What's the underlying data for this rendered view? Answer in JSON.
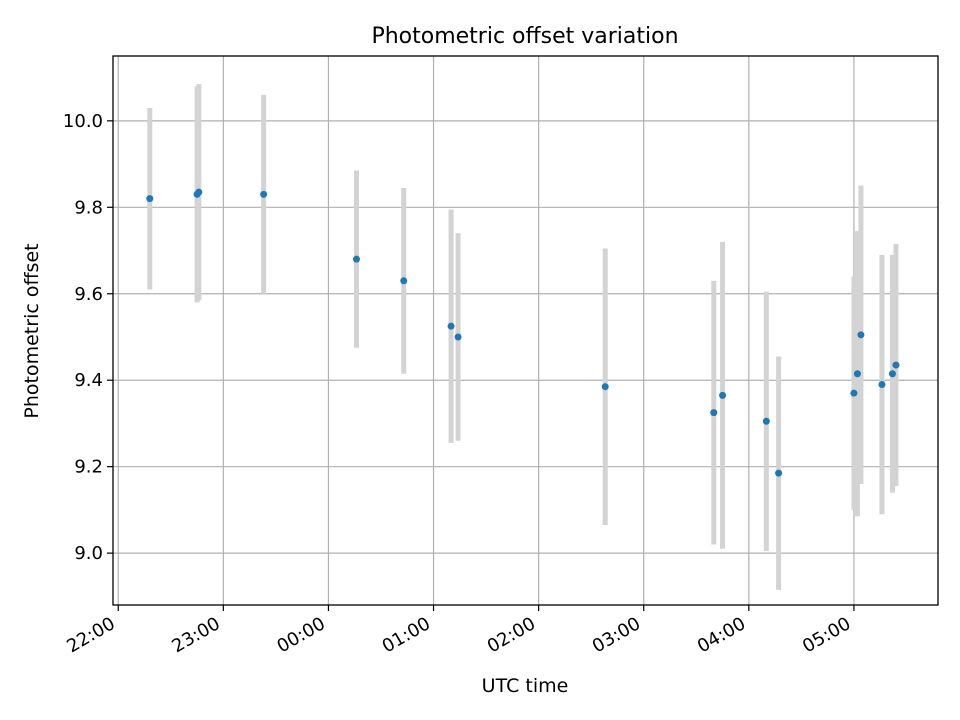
{
  "chart_data": {
    "type": "scatter",
    "title": "Photometric offset variation",
    "xlabel": "UTC time",
    "ylabel": "Photometric offset",
    "x_ticks": [
      "22:00",
      "23:00",
      "00:00",
      "01:00",
      "02:00",
      "03:00",
      "04:00",
      "05:00"
    ],
    "y_ticks": [
      "9.0",
      "9.2",
      "9.4",
      "9.6",
      "9.8",
      "10.0"
    ],
    "xlim": [
      "21:57",
      "05:48"
    ],
    "ylim": [
      8.88,
      10.15
    ],
    "grid": true,
    "colors": {
      "marker": "#1f77b4",
      "errorbar": "#d3d3d3",
      "grid": "#b0b0b0"
    },
    "series": [
      {
        "points": [
          {
            "t": "22:18",
            "y": 9.82,
            "err": 0.21
          },
          {
            "t": "22:45",
            "y": 9.83,
            "err": 0.25
          },
          {
            "t": "22:46",
            "y": 9.835,
            "err": 0.25
          },
          {
            "t": "23:23",
            "y": 9.83,
            "err": 0.23
          },
          {
            "t": "00:16",
            "y": 9.68,
            "err": 0.205
          },
          {
            "t": "00:43",
            "y": 9.63,
            "err": 0.215
          },
          {
            "t": "01:10",
            "y": 9.525,
            "err": 0.27
          },
          {
            "t": "01:14",
            "y": 9.5,
            "err": 0.24
          },
          {
            "t": "02:38",
            "y": 9.385,
            "err": 0.32
          },
          {
            "t": "03:40",
            "y": 9.325,
            "err": 0.305
          },
          {
            "t": "03:45",
            "y": 9.365,
            "err": 0.355
          },
          {
            "t": "04:10",
            "y": 9.305,
            "err": 0.3
          },
          {
            "t": "04:17",
            "y": 9.185,
            "err": 0.27
          },
          {
            "t": "05:00",
            "y": 9.37,
            "err": 0.27
          },
          {
            "t": "05:02",
            "y": 9.415,
            "err": 0.33
          },
          {
            "t": "05:04",
            "y": 9.505,
            "err": 0.345
          },
          {
            "t": "05:16",
            "y": 9.39,
            "err": 0.3
          },
          {
            "t": "05:22",
            "y": 9.415,
            "err": 0.275
          },
          {
            "t": "05:24",
            "y": 9.435,
            "err": 0.28
          }
        ]
      }
    ]
  }
}
